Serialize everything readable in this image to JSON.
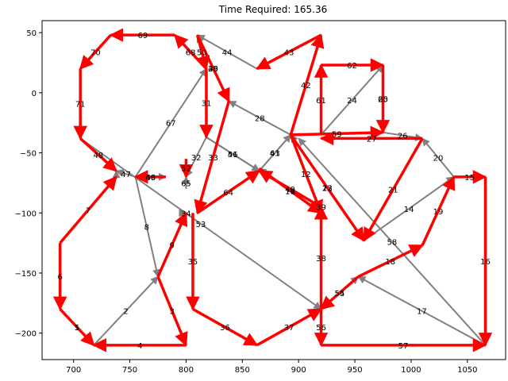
{
  "chart_data": {
    "type": "directed-graph",
    "title": "Time Required: 165.36",
    "xlim": [
      672,
      1084
    ],
    "ylim": [
      -222,
      60
    ],
    "x_ticks": [
      700,
      750,
      800,
      850,
      900,
      950,
      1000,
      1050
    ],
    "y_ticks": [
      50,
      0,
      -50,
      -100,
      -150,
      -200
    ],
    "x_tick_labels": [
      "700",
      "750",
      "800",
      "850",
      "900",
      "950",
      "1000",
      "1050"
    ],
    "y_tick_labels": [
      "50",
      "0",
      "−50",
      "−100",
      "−150",
      "−200"
    ],
    "grid": false,
    "colors": {
      "route": "#ff0000",
      "other": "#808080"
    },
    "edges": [
      {
        "from": [
          688,
          -125
        ],
        "to": [
          688,
          -180
        ],
        "label": "6",
        "route": true
      },
      {
        "from": [
          688,
          -180
        ],
        "to": [
          718,
          -210
        ],
        "label": "5",
        "route": true
      },
      {
        "from": [
          688,
          -180
        ],
        "to": [
          718,
          -210
        ],
        "label": "1",
        "route": false
      },
      {
        "from": [
          688,
          -125
        ],
        "to": [
          738,
          -70
        ],
        "label": "7",
        "route": true
      },
      {
        "from": [
          738,
          -70
        ],
        "to": [
          738,
          -65
        ],
        "label": "",
        "route": false
      },
      {
        "from": [
          718,
          -210
        ],
        "to": [
          775,
          -153
        ],
        "label": "2",
        "route": false
      },
      {
        "from": [
          775,
          -153
        ],
        "to": [
          800,
          -210
        ],
        "label": "3",
        "route": true
      },
      {
        "from": [
          800,
          -210
        ],
        "to": [
          718,
          -210
        ],
        "label": "4",
        "route": true
      },
      {
        "from": [
          755,
          -70
        ],
        "to": [
          775,
          -153
        ],
        "label": "8",
        "route": false
      },
      {
        "from": [
          775,
          -153
        ],
        "to": [
          800,
          -100
        ],
        "label": "9",
        "route": true
      },
      {
        "from": [
          865,
          -63
        ],
        "to": [
          920,
          -100
        ],
        "label": "11",
        "route": true
      },
      {
        "from": [
          920,
          -100
        ],
        "to": [
          865,
          -63
        ],
        "label": "10",
        "route": false
      },
      {
        "from": [
          893,
          -35
        ],
        "to": [
          920,
          -100
        ],
        "label": "12",
        "route": true
      },
      {
        "from": [
          893,
          -35
        ],
        "to": [
          958,
          -123
        ],
        "label": "13",
        "route": false
      },
      {
        "from": [
          958,
          -123
        ],
        "to": [
          1038,
          -70
        ],
        "label": "14",
        "route": false
      },
      {
        "from": [
          1038,
          -70
        ],
        "to": [
          1066,
          -70
        ],
        "label": "15",
        "route": true
      },
      {
        "from": [
          1066,
          -70
        ],
        "to": [
          1066,
          -210
        ],
        "label": "16",
        "route": true
      },
      {
        "from": [
          1066,
          -210
        ],
        "to": [
          953,
          -153
        ],
        "label": "17",
        "route": false
      },
      {
        "from": [
          1010,
          -127
        ],
        "to": [
          1038,
          -70
        ],
        "label": "19",
        "route": true
      },
      {
        "from": [
          953,
          -153
        ],
        "to": [
          1010,
          -127
        ],
        "label": "18",
        "route": true
      },
      {
        "from": [
          1038,
          -70
        ],
        "to": [
          1010,
          -38
        ],
        "label": "20",
        "route": false
      },
      {
        "from": [
          1010,
          -38
        ],
        "to": [
          958,
          -123
        ],
        "label": "21",
        "route": true
      },
      {
        "from": [
          958,
          -123
        ],
        "to": [
          893,
          -35
        ],
        "label": "22",
        "route": false
      },
      {
        "from": [
          893,
          -35
        ],
        "to": [
          958,
          -123
        ],
        "label": "23",
        "route": true
      },
      {
        "from": [
          920,
          -35
        ],
        "to": [
          975,
          23
        ],
        "label": "24",
        "route": false
      },
      {
        "from": [
          975,
          23
        ],
        "to": [
          975,
          -33
        ],
        "label": "25",
        "route": true
      },
      {
        "from": [
          975,
          -33
        ],
        "to": [
          1010,
          -38
        ],
        "label": "26",
        "route": false
      },
      {
        "from": [
          1010,
          -38
        ],
        "to": [
          920,
          -38
        ],
        "label": "27",
        "route": true
      },
      {
        "from": [
          893,
          -35
        ],
        "to": [
          838,
          -7
        ],
        "label": "28",
        "route": false
      },
      {
        "from": [
          838,
          -7
        ],
        "to": [
          810,
          48
        ],
        "label": "29",
        "route": false
      },
      {
        "from": [
          810,
          48
        ],
        "to": [
          838,
          -7
        ],
        "label": "30",
        "route": true
      },
      {
        "from": [
          818,
          20
        ],
        "to": [
          818,
          -37
        ],
        "label": "31",
        "route": true
      },
      {
        "from": [
          818,
          -37
        ],
        "to": [
          800,
          -70
        ],
        "label": "32",
        "route": false
      },
      {
        "from": [
          838,
          -7
        ],
        "to": [
          810,
          -100
        ],
        "label": "33",
        "route": true
      },
      {
        "from": [
          800,
          -100
        ],
        "to": [
          800,
          -100
        ],
        "label": "34",
        "route": false
      },
      {
        "from": [
          806,
          -100
        ],
        "to": [
          806,
          -180
        ],
        "label": "35",
        "route": true
      },
      {
        "from": [
          806,
          -180
        ],
        "to": [
          863,
          -210
        ],
        "label": "36",
        "route": true
      },
      {
        "from": [
          863,
          -210
        ],
        "to": [
          920,
          -180
        ],
        "label": "37",
        "route": true
      },
      {
        "from": [
          920,
          -180
        ],
        "to": [
          920,
          -95
        ],
        "label": "38",
        "route": true
      },
      {
        "from": [
          920,
          -95
        ],
        "to": [
          920,
          -95
        ],
        "label": "39",
        "route": false
      },
      {
        "from": [
          920,
          -95
        ],
        "to": [
          865,
          -65
        ],
        "label": "40",
        "route": true
      },
      {
        "from": [
          865,
          -65
        ],
        "to": [
          893,
          -35
        ],
        "label": "41",
        "route": false
      },
      {
        "from": [
          893,
          -35
        ],
        "to": [
          920,
          48
        ],
        "label": "42",
        "route": true
      },
      {
        "from": [
          920,
          48
        ],
        "to": [
          863,
          20
        ],
        "label": "43",
        "route": true
      },
      {
        "from": [
          863,
          20
        ],
        "to": [
          810,
          48
        ],
        "label": "44",
        "route": false
      },
      {
        "from": [
          838,
          -7
        ],
        "to": [
          810,
          48
        ],
        "label": "45",
        "route": false
      },
      {
        "from": [
          818,
          -37
        ],
        "to": [
          865,
          -65
        ],
        "label": "46",
        "route": false
      },
      {
        "from": [
          755,
          -70
        ],
        "to": [
          738,
          -65
        ],
        "label": "47",
        "route": false
      },
      {
        "from": [
          706,
          -38
        ],
        "to": [
          738,
          -65
        ],
        "label": "48",
        "route": true
      },
      {
        "from": [
          782,
          -70
        ],
        "to": [
          755,
          -70
        ],
        "label": "49",
        "route": true
      },
      {
        "from": [
          810,
          48
        ],
        "to": [
          818,
          20
        ],
        "label": "50",
        "route": true
      },
      {
        "from": [
          818,
          -37
        ],
        "to": [
          865,
          -65
        ],
        "label": "51",
        "route": false
      },
      {
        "from": [
          800,
          -55
        ],
        "to": [
          800,
          -70
        ],
        "label": "52",
        "route": true
      },
      {
        "from": [
          706,
          -38
        ],
        "to": [
          920,
          -180
        ],
        "label": "53",
        "route": false
      },
      {
        "from": [
          920,
          -180
        ],
        "to": [
          953,
          -153
        ],
        "label": "54",
        "route": false
      },
      {
        "from": [
          953,
          -153
        ],
        "to": [
          920,
          -180
        ],
        "label": "55",
        "route": true
      },
      {
        "from": [
          920,
          -180
        ],
        "to": [
          920,
          -210
        ],
        "label": "56",
        "route": true
      },
      {
        "from": [
          920,
          -210
        ],
        "to": [
          1066,
          -210
        ],
        "label": "57",
        "route": true
      },
      {
        "from": [
          1066,
          -210
        ],
        "to": [
          900,
          -38
        ],
        "label": "58",
        "route": false
      },
      {
        "from": [
          893,
          -35
        ],
        "to": [
          975,
          -33
        ],
        "label": "59",
        "route": true
      },
      {
        "from": [
          975,
          23
        ],
        "to": [
          975,
          -33
        ],
        "label": "60",
        "route": false
      },
      {
        "from": [
          920,
          -35
        ],
        "to": [
          920,
          23
        ],
        "label": "61",
        "route": true
      },
      {
        "from": [
          920,
          23
        ],
        "to": [
          975,
          23
        ],
        "label": "62",
        "route": true
      },
      {
        "from": [
          865,
          -65
        ],
        "to": [
          893,
          -35
        ],
        "label": "63",
        "route": false
      },
      {
        "from": [
          810,
          -100
        ],
        "to": [
          865,
          -65
        ],
        "label": "64",
        "route": true
      },
      {
        "from": [
          800,
          -80
        ],
        "to": [
          800,
          -70
        ],
        "label": "65",
        "route": false
      },
      {
        "from": [
          755,
          -70
        ],
        "to": [
          782,
          -70
        ],
        "label": "66",
        "route": false
      },
      {
        "from": [
          755,
          -70
        ],
        "to": [
          818,
          20
        ],
        "label": "67",
        "route": false
      },
      {
        "from": [
          818,
          20
        ],
        "to": [
          790,
          48
        ],
        "label": "68",
        "route": true
      },
      {
        "from": [
          790,
          48
        ],
        "to": [
          733,
          48
        ],
        "label": "69",
        "route": true
      },
      {
        "from": [
          733,
          48
        ],
        "to": [
          706,
          20
        ],
        "label": "70",
        "route": true
      },
      {
        "from": [
          706,
          20
        ],
        "to": [
          706,
          -38
        ],
        "label": "71",
        "route": true
      }
    ]
  }
}
